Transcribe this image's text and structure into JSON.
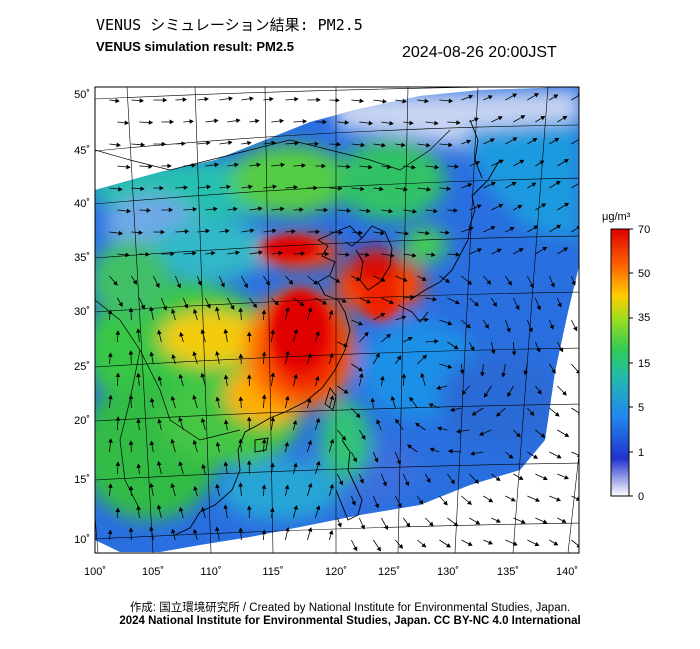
{
  "header": {
    "title_jp": "VENUS シミュレーション結果: PM2.5",
    "title_en": "VENUS simulation result: PM2.5",
    "timestamp": "2024-08-26 20:00JST"
  },
  "map": {
    "lon_labels": [
      "100˚",
      "105˚",
      "110˚",
      "115˚",
      "120˚",
      "125˚",
      "130˚",
      "135˚",
      "140˚"
    ],
    "lat_labels": [
      "50˚",
      "45˚",
      "40˚",
      "35˚",
      "30˚",
      "25˚",
      "20˚",
      "15˚",
      "10˚"
    ]
  },
  "colorbar": {
    "unit": "μg/m³",
    "tick_labels": [
      "70",
      "50",
      "35",
      "15",
      "5",
      "1",
      "0"
    ],
    "colors": [
      "#ffffff",
      "#2233cc",
      "#2288ee",
      "#33cc66",
      "#99dd22",
      "#ffcc00",
      "#ff6600",
      "#dd0000"
    ]
  },
  "footer": {
    "credit": "作成: 国立環境研究所 / Created by National Institute for Environmental Studies, Japan.",
    "copyright": "2024 National Institute for Environmental Studies, Japan. CC BY-NC 4.0 International"
  }
}
